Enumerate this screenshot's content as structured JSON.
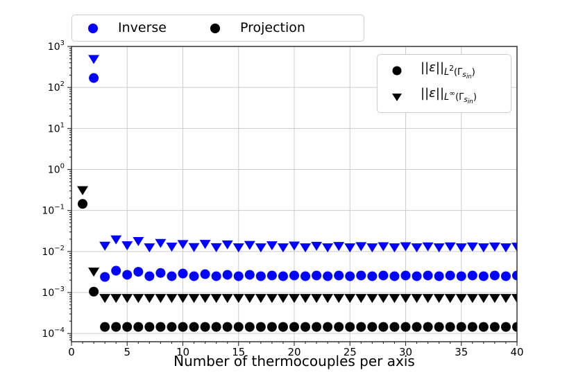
{
  "chart_data": {
    "type": "scatter",
    "title": "",
    "xlabel": "Number of thermocouples per axis",
    "ylabel": "",
    "x_axis": {
      "min": 0,
      "max": 40,
      "major_ticks": [
        0,
        5,
        10,
        15,
        20,
        25,
        30,
        35,
        40
      ],
      "minor_tick_step": 1
    },
    "y_axis": {
      "scale": "log",
      "min_exp": -4.2,
      "max_exp": 3,
      "tick_base": "10",
      "tick_exponents": [
        3,
        2,
        1,
        0,
        -1,
        -2,
        -3,
        -4
      ]
    },
    "grid": true,
    "colors": {
      "blue": "#0000ff",
      "black": "#000000",
      "grid": "#cccccc",
      "spine": "#262626",
      "text": "#000000",
      "legend_border": "#cccccc"
    },
    "series": [
      {
        "name": "inverse-l2",
        "legend_group": "Inverse",
        "norm": "L2",
        "marker": "circle",
        "color": "#0000ff",
        "x": [
          2,
          3,
          4,
          5,
          6,
          7,
          8,
          9,
          10,
          11,
          12,
          13,
          14,
          15,
          16,
          17,
          18,
          19,
          20,
          21,
          22,
          23,
          24,
          25,
          26,
          27,
          28,
          29,
          30,
          31,
          32,
          33,
          34,
          35,
          36,
          37,
          38,
          39,
          40
        ],
        "y": [
          170,
          0.0024,
          0.0034,
          0.0027,
          0.0032,
          0.0025,
          0.003,
          0.0025,
          0.0029,
          0.0025,
          0.0028,
          0.0025,
          0.0027,
          0.0025,
          0.0027,
          0.0025,
          0.0026,
          0.0025,
          0.0026,
          0.0025,
          0.0026,
          0.0025,
          0.0026,
          0.0025,
          0.0026,
          0.0025,
          0.0026,
          0.0025,
          0.0026,
          0.0025,
          0.0026,
          0.0025,
          0.0026,
          0.0025,
          0.0026,
          0.0025,
          0.0026,
          0.0025,
          0.0026
        ]
      },
      {
        "name": "inverse-linf",
        "legend_group": "Inverse",
        "norm": "Linf",
        "marker": "triangle-down",
        "color": "#0000ff",
        "x": [
          2,
          3,
          4,
          5,
          6,
          7,
          8,
          9,
          10,
          11,
          12,
          13,
          14,
          15,
          16,
          17,
          18,
          19,
          20,
          21,
          22,
          23,
          24,
          25,
          26,
          27,
          28,
          29,
          30,
          31,
          32,
          33,
          34,
          35,
          36,
          37,
          38,
          39,
          40
        ],
        "y": [
          490,
          0.0137,
          0.0195,
          0.014,
          0.0178,
          0.0125,
          0.016,
          0.013,
          0.015,
          0.0127,
          0.0152,
          0.0126,
          0.0147,
          0.0125,
          0.0143,
          0.0125,
          0.014,
          0.0125,
          0.0138,
          0.0125,
          0.0136,
          0.0125,
          0.0135,
          0.0125,
          0.0134,
          0.0125,
          0.0133,
          0.0125,
          0.0133,
          0.0125,
          0.0132,
          0.0125,
          0.0132,
          0.0125,
          0.0131,
          0.0125,
          0.0131,
          0.0125,
          0.013
        ]
      },
      {
        "name": "projection-l2",
        "legend_group": "Projection",
        "norm": "L2",
        "marker": "circle",
        "color": "#000000",
        "x": [
          1,
          2,
          3,
          4,
          5,
          6,
          7,
          8,
          9,
          10,
          11,
          12,
          13,
          14,
          15,
          16,
          17,
          18,
          19,
          20,
          21,
          22,
          23,
          24,
          25,
          26,
          27,
          28,
          29,
          30,
          31,
          32,
          33,
          34,
          35,
          36,
          37,
          38,
          39,
          40
        ],
        "y": [
          0.145,
          0.00105,
          0.000145,
          0.000145,
          0.000145,
          0.000145,
          0.000145,
          0.000145,
          0.000145,
          0.000145,
          0.000145,
          0.000145,
          0.000145,
          0.000145,
          0.000145,
          0.000145,
          0.000145,
          0.000145,
          0.000145,
          0.000145,
          0.000145,
          0.000145,
          0.000145,
          0.000145,
          0.000145,
          0.000145,
          0.000145,
          0.000145,
          0.000145,
          0.000145,
          0.000145,
          0.000145,
          0.000145,
          0.000145,
          0.000145,
          0.000145,
          0.000145,
          0.000145,
          0.000145,
          0.000145
        ]
      },
      {
        "name": "projection-linf",
        "legend_group": "Projection",
        "norm": "Linf",
        "marker": "triangle-down",
        "color": "#000000",
        "x": [
          1,
          2,
          3,
          4,
          5,
          6,
          7,
          8,
          9,
          10,
          11,
          12,
          13,
          14,
          15,
          16,
          17,
          18,
          19,
          20,
          21,
          22,
          23,
          24,
          25,
          26,
          27,
          28,
          29,
          30,
          31,
          32,
          33,
          34,
          35,
          36,
          37,
          38,
          39,
          40
        ],
        "y": [
          0.31,
          0.0032,
          0.00073,
          0.00073,
          0.00073,
          0.00073,
          0.00073,
          0.00073,
          0.00073,
          0.00073,
          0.00073,
          0.00073,
          0.00073,
          0.00073,
          0.00073,
          0.00073,
          0.00073,
          0.00073,
          0.00073,
          0.00073,
          0.00073,
          0.00073,
          0.00073,
          0.00073,
          0.00073,
          0.00073,
          0.00073,
          0.00073,
          0.00073,
          0.00073,
          0.00073,
          0.00073,
          0.00073,
          0.00073,
          0.00073,
          0.00073,
          0.00073,
          0.00073,
          0.00073,
          0.00073
        ]
      }
    ],
    "top_legend": {
      "entries": [
        {
          "label": "Inverse",
          "marker": "circle",
          "color": "#0000ff"
        },
        {
          "label": "Projection",
          "marker": "circle",
          "color": "#000000"
        }
      ]
    },
    "inner_legend": {
      "rows": [
        {
          "marker": "circle",
          "color": "#000000",
          "bar_left": "||",
          "epsilon": "ε",
          "bar_right": "||",
          "space": "L",
          "exponent": "2",
          "open_paren": "(Γ",
          "sub": "s",
          "subsub": "in",
          "close_paren": ")"
        },
        {
          "marker": "triangle-down",
          "color": "#000000",
          "bar_left": "||",
          "epsilon": "ε",
          "bar_right": "||",
          "space": "L",
          "exponent": "∞",
          "open_paren": "(Γ",
          "sub": "s",
          "subsub": "in",
          "close_paren": ")"
        }
      ]
    }
  }
}
